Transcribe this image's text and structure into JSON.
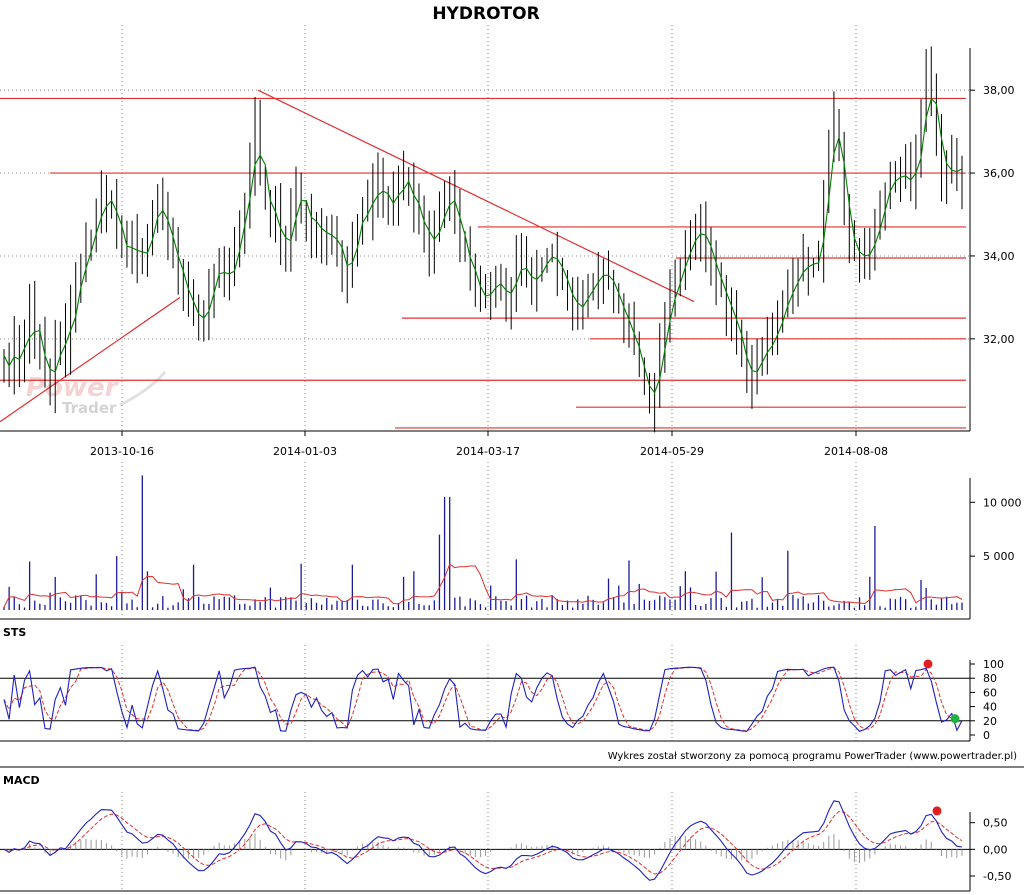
{
  "title": "HYDROTOR",
  "watermark": {
    "line1": "Power",
    "line2": "Trader"
  },
  "credit": "Wykres został stworzony za pomocą programu PowerTrader (www.powertrader.pl)",
  "colors": {
    "hline": "#e03030",
    "ma": "#008000",
    "bar": "#000000",
    "volume": "#1a1a9a",
    "sts_k": "#2020c0",
    "sts_d": "#e03030",
    "macd": "#2020c0",
    "signal": "#e03030",
    "sell_dot": "#e02020",
    "buy_dot": "#20b040"
  },
  "chart_data": [
    {
      "panel": "price",
      "type": "ohlc",
      "title": "HYDROTOR",
      "x_ticks": [
        "2013-10-16",
        "2014-01-03",
        "2014-03-17",
        "2014-05-29",
        "2014-08-08"
      ],
      "ylim": [
        29.8,
        39.5
      ],
      "y_ticks": [
        32,
        34,
        36,
        38
      ],
      "y_tick_labels": [
        "32,00",
        "34,00",
        "36,00",
        "38,00"
      ],
      "grid": true,
      "overlays": [
        "moving average (green)",
        "support/resistance lines (red)"
      ],
      "close_series": [
        31.6,
        31.1,
        32.0,
        31.4,
        31.9,
        32.8,
        31.8,
        32.0,
        31.0,
        30.8,
        31.8,
        32.2,
        31.6,
        32.8,
        33.2,
        33.7,
        34.2,
        34.4,
        35.0,
        35.4,
        35.2,
        35.4,
        34.6,
        34.2,
        33.9,
        34.5,
        34.0,
        33.8,
        34.4,
        35.0,
        35.4,
        34.9,
        34.3,
        34.2,
        33.5,
        33.2,
        32.9,
        32.6,
        32.3,
        32.6,
        33.1,
        33.6,
        34.0,
        33.2,
        33.5,
        34.2,
        34.7,
        35.3,
        36.1,
        37.2,
        36.0,
        35.4,
        34.6,
        35.2,
        34.2,
        33.9,
        35.0,
        35.8,
        35.2,
        35.0,
        34.6,
        34.9,
        34.5,
        34.3,
        34.7,
        34.2,
        33.7,
        33.4,
        34.4,
        34.8,
        35.2,
        35.0,
        35.6,
        35.8,
        35.3,
        35.4,
        35.1,
        35.9,
        35.8,
        35.7,
        34.9,
        35.2,
        34.4,
        34.2,
        34.6,
        34.9,
        35.3,
        35.5,
        35.2,
        34.1,
        34.2,
        33.6,
        33.2,
        33.0,
        32.9,
        33.3,
        33.5,
        33.2,
        32.8,
        33.3,
        33.9,
        33.8,
        33.4,
        33.3,
        33.6,
        33.8,
        34.0,
        34.1,
        33.7,
        33.4,
        33.2,
        32.6,
        32.8,
        32.9,
        33.2,
        33.4,
        33.5,
        33.7,
        33.4,
        33.1,
        32.8,
        32.4,
        32.2,
        31.8,
        31.4,
        30.8,
        30.4,
        30.9,
        31.8,
        32.5,
        33.0,
        33.4,
        33.6,
        34.2,
        34.4,
        34.5,
        34.7,
        34.3,
        33.7,
        33.5,
        33.2,
        32.7,
        32.5,
        32.2,
        31.6,
        30.9,
        31.2,
        31.5,
        31.6,
        31.9,
        32.0,
        32.4,
        32.8,
        33.2,
        33.3,
        33.6,
        33.9,
        33.7,
        33.8,
        34.0,
        35.3,
        36.8,
        37.3,
        36.5,
        34.9,
        34.3,
        34.1,
        33.9,
        34.0,
        34.2,
        34.6,
        35.1,
        35.6,
        36.0,
        35.8,
        35.9,
        36.1,
        35.5,
        36.4,
        37.2,
        38.4,
        37.8,
        36.8,
        35.9,
        36.0,
        36.3,
        35.8,
        36.2
      ],
      "volume_ylim": [
        0,
        13000
      ],
      "volume_y_ticks": [
        5000,
        10000
      ],
      "volume_y_tick_labels": [
        "5 000",
        "10 000"
      ]
    },
    {
      "panel": "STS",
      "type": "line",
      "title": "STS",
      "ylim": [
        0,
        100
      ],
      "y_ticks": [
        0,
        20,
        40,
        60,
        80,
        100
      ],
      "y_tick_labels": [
        "0",
        "20",
        "40",
        "60",
        "80",
        "100"
      ],
      "reference_lines": [
        20,
        80
      ],
      "markers": [
        {
          "type": "sell",
          "value": 100,
          "color": "#e02020"
        },
        {
          "type": "buy",
          "value": 23,
          "color": "#20b040"
        }
      ]
    },
    {
      "panel": "MACD",
      "type": "line",
      "title": "MACD",
      "ylim": [
        -0.65,
        1.0
      ],
      "y_ticks": [
        -0.5,
        0.0,
        0.5
      ],
      "y_tick_labels": [
        "-0,50",
        "0,00",
        "0,50"
      ],
      "reference_lines": [
        0
      ],
      "markers": [
        {
          "type": "sell",
          "value": 0.72,
          "color": "#e02020"
        }
      ]
    }
  ]
}
